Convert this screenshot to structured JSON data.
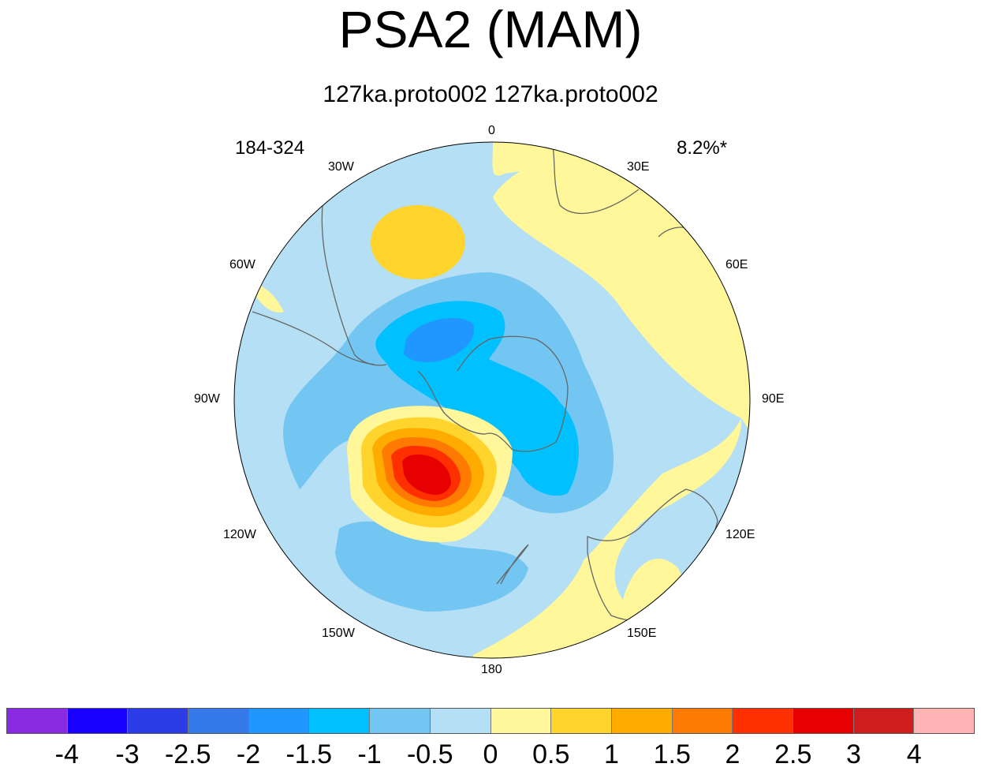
{
  "title": "PSA2 (MAM)",
  "subtitle": "127ka.proto002  127ka.proto002",
  "left_label": "184-324",
  "right_label": "8.2%*",
  "longitude_labels": {
    "lon_0": "0",
    "lon_30e": "30E",
    "lon_60e": "60E",
    "lon_90e": "90E",
    "lon_120e": "120E",
    "lon_150e": "150E",
    "lon_180": "180",
    "lon_150w": "150W",
    "lon_120w": "120W",
    "lon_90w": "90W",
    "lon_60w": "60W",
    "lon_30w": "30W"
  },
  "colorbar": {
    "colors": [
      "#8a2be2",
      "#1a00ff",
      "#2c3de8",
      "#3578ea",
      "#1f97ff",
      "#00c0ff",
      "#73c6f2",
      "#b4dff5",
      "#fff79a",
      "#ffd42c",
      "#ffab00",
      "#ff7a00",
      "#ff3000",
      "#e60000",
      "#cf1c1c",
      "#ffb3b3"
    ],
    "ticks": [
      "-4",
      "-3",
      "-2.5",
      "-2",
      "-1.5",
      "-1",
      "-0.5",
      "0",
      "0.5",
      "1",
      "1.5",
      "2",
      "2.5",
      "3",
      "4"
    ]
  },
  "map_colors": {
    "ocean_neg_weak": "#b4dff5",
    "neg1": "#73c6f2",
    "neg2": "#00c0ff",
    "neg3": "#1f97ff",
    "pos1": "#fff79a",
    "pos2": "#ffd42c",
    "pos3": "#ffab00",
    "pos4": "#ff7a00",
    "pos5": "#ff3000",
    "pos6": "#e60000",
    "coast": "#666666"
  }
}
